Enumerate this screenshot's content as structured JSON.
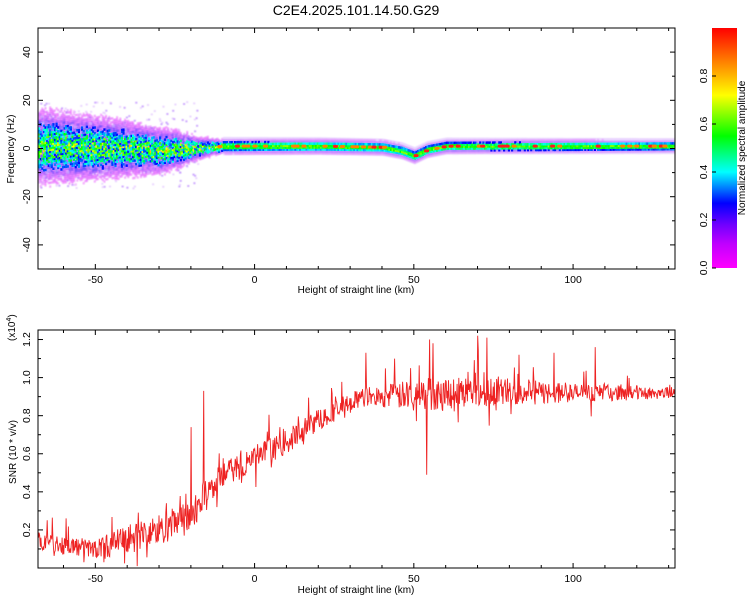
{
  "figure": {
    "title": "C2E4.2025.101.14.50.G29"
  },
  "chart_data": [
    {
      "type": "heatmap",
      "name": "spectrogram",
      "xlabel": "Height of straight line (km)",
      "ylabel": "Frequency (Hz)",
      "xlim": [
        -68,
        132
      ],
      "ylim": [
        -50,
        50
      ],
      "xticks": [
        -50,
        0,
        50,
        100
      ],
      "yticks": [
        -40,
        -20,
        0,
        20,
        40
      ],
      "colorbar": {
        "label": "Normalized spectral amplitude",
        "range": [
          0.0,
          1.0
        ],
        "ticks": [
          "0.0",
          "0.2",
          "0.4",
          "0.6",
          "0.8"
        ],
        "colormap": [
          "#ff00ff",
          "#8000ff",
          "#0000ff",
          "#00ffff",
          "#00ff00",
          "#ffff00",
          "#ff8000",
          "#ff0000"
        ]
      },
      "ridge": {
        "description": "dominant frequency ridge",
        "x": [
          -68,
          -55,
          -40,
          -30,
          -20,
          -10,
          0,
          20,
          40,
          46,
          50,
          54,
          60,
          80,
          100,
          120,
          132
        ],
        "y": [
          1,
          0.5,
          0,
          -1,
          0,
          1,
          1,
          1,
          0.5,
          -1,
          -3,
          -0.5,
          1,
          1,
          1,
          1,
          1
        ]
      },
      "band_spread_hz": {
        "x": [
          -68,
          -50,
          -35,
          -25,
          -18,
          -10,
          130
        ],
        "y": [
          13,
          11,
          9,
          7,
          4,
          2.5,
          2
        ]
      }
    },
    {
      "type": "line",
      "name": "snr",
      "xlabel": "Height of straight line (km)",
      "ylabel": "SNR (10 * v/v)",
      "scale_label": "(x10",
      "scale_exponent": "4",
      "xlim": [
        -68,
        132
      ],
      "ylim": [
        0.0,
        1.25
      ],
      "xticks": [
        -50,
        0,
        50,
        100
      ],
      "yticks": [
        0.2,
        0.4,
        0.6,
        0.8,
        1.0,
        1.2
      ],
      "series": [
        {
          "color": "#ee2222",
          "trend_x": [
            -68,
            -60,
            -50,
            -40,
            -30,
            -20,
            -15,
            -10,
            0,
            10,
            20,
            30,
            35,
            40,
            50,
            60,
            70,
            80,
            90,
            100,
            110,
            120,
            132
          ],
          "trend_y": [
            0.15,
            0.12,
            0.1,
            0.15,
            0.2,
            0.27,
            0.4,
            0.48,
            0.58,
            0.66,
            0.78,
            0.87,
            0.9,
            0.9,
            0.91,
            0.92,
            0.93,
            0.93,
            0.92,
            0.92,
            0.92,
            0.92,
            0.92
          ],
          "noise_x": [
            -68,
            -50,
            -40,
            -20,
            -10,
            20,
            35,
            55,
            75,
            100,
            132
          ],
          "noise_y": [
            0.05,
            0.05,
            0.08,
            0.09,
            0.07,
            0.06,
            0.05,
            0.09,
            0.08,
            0.05,
            0.03
          ],
          "spikes": [
            {
              "x": -20,
              "y": 0.74
            },
            {
              "x": -16,
              "y": 0.93
            },
            {
              "x": 35,
              "y": 1.13
            },
            {
              "x": 44,
              "y": 1.1
            },
            {
              "x": 54,
              "y": 0.49
            },
            {
              "x": 55,
              "y": 1.2
            },
            {
              "x": 56,
              "y": 1.18
            },
            {
              "x": 70,
              "y": 1.22
            },
            {
              "x": 73,
              "y": 1.21
            },
            {
              "x": 83,
              "y": 1.12
            },
            {
              "x": 94,
              "y": 1.13
            },
            {
              "x": 107,
              "y": 1.16
            },
            {
              "x": 117,
              "y": 1.01
            }
          ]
        }
      ]
    }
  ]
}
